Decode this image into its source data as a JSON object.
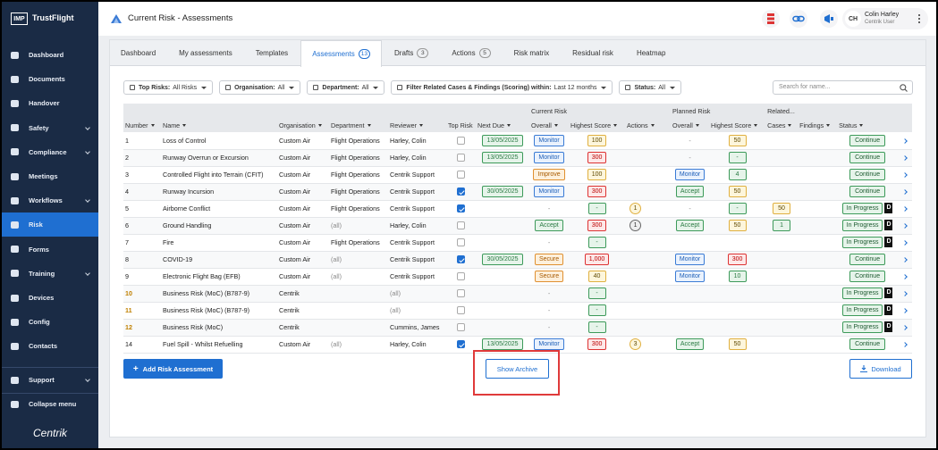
{
  "sidebar": {
    "logo": "IMP",
    "brand": "TrustFlight",
    "items": [
      {
        "label": "Dashboard"
      },
      {
        "label": "Documents"
      },
      {
        "label": "Handover"
      },
      {
        "label": "Safety",
        "expandable": true
      },
      {
        "label": "Compliance",
        "expandable": true
      },
      {
        "label": "Meetings"
      },
      {
        "label": "Workflows",
        "expandable": true
      },
      {
        "label": "Risk",
        "active": true
      },
      {
        "label": "Forms"
      },
      {
        "label": "Training",
        "expandable": true
      },
      {
        "label": "Devices"
      },
      {
        "label": "Config"
      },
      {
        "label": "Contacts"
      }
    ],
    "bottom": [
      {
        "label": "Support",
        "expandable": true
      },
      {
        "label": "Collapse menu"
      }
    ],
    "footer": "Centrik"
  },
  "header": {
    "title": "Current Risk",
    "separator": "-",
    "subtitle": "Assessments",
    "user": {
      "initials": "CH",
      "name": "Colin Harley",
      "role": "Centrik User"
    }
  },
  "tabs": [
    {
      "label": "Dashboard"
    },
    {
      "label": "My assessments"
    },
    {
      "label": "Templates"
    },
    {
      "label": "Assessments",
      "count": 13,
      "active": true
    },
    {
      "label": "Drafts",
      "count": 3
    },
    {
      "label": "Actions",
      "count": 5
    },
    {
      "label": "Risk matrix"
    },
    {
      "label": "Residual risk"
    },
    {
      "label": "Heatmap"
    }
  ],
  "filters": [
    {
      "label": "Top Risks:",
      "value": "All Risks"
    },
    {
      "label": "Organisation:",
      "value": "All"
    },
    {
      "label": "Department:",
      "value": "All"
    },
    {
      "label": "Filter Related Cases & Findings (Scoring) within:",
      "value": "Last 12 months"
    },
    {
      "label": "Status:",
      "value": "All"
    }
  ],
  "search_placeholder": "Search for name...",
  "table": {
    "groups": [
      "Current Risk",
      "Planned Risk",
      "Related..."
    ],
    "columns": [
      "Number",
      "Name",
      "Organisation",
      "Department",
      "Reviewer",
      "Top Risk",
      "Next Due",
      "Overall",
      "Highest Score",
      "Actions",
      "Overall",
      "Highest Score",
      "Cases",
      "Findings",
      "Status"
    ],
    "rows": [
      [
        "1",
        "Loss of Control",
        "Custom Air",
        "Flight Operations",
        "Harley, Colin",
        false,
        {
          "text": "13/05/2025",
          "tone": "green"
        },
        {
          "text": "Monitor",
          "tone": "blue"
        },
        {
          "text": "100",
          "tone": "yellow"
        },
        null,
        "-",
        {
          "text": "50",
          "tone": "yellow"
        },
        null,
        null,
        {
          "text": "Continue"
        }
      ],
      [
        "2",
        "Runway Overrun or Excursion",
        "Custom Air",
        "Flight Operations",
        "Harley, Colin",
        false,
        {
          "text": "13/05/2025",
          "tone": "green"
        },
        {
          "text": "Monitor",
          "tone": "blue"
        },
        {
          "text": "300",
          "tone": "red"
        },
        null,
        "-",
        {
          "text": "-",
          "tone": "green"
        },
        null,
        null,
        {
          "text": "Continue"
        }
      ],
      [
        "3",
        "Controlled Flight into Terrain (CFIT)",
        "Custom Air",
        "Flight Operations",
        "Centrik Support",
        false,
        null,
        {
          "text": "Improve",
          "tone": "orange"
        },
        {
          "text": "100",
          "tone": "yellow"
        },
        null,
        {
          "text": "Monitor",
          "tone": "blue"
        },
        {
          "text": "4",
          "tone": "green"
        },
        null,
        null,
        {
          "text": "Continue"
        }
      ],
      [
        "4",
        "Runway Incursion",
        "Custom Air",
        "Flight Operations",
        "Centrik Support",
        true,
        {
          "text": "30/05/2025",
          "tone": "green"
        },
        {
          "text": "Monitor",
          "tone": "blue"
        },
        {
          "text": "300",
          "tone": "red"
        },
        null,
        {
          "text": "Accept",
          "tone": "green"
        },
        {
          "text": "50",
          "tone": "yellow"
        },
        null,
        null,
        {
          "text": "Continue"
        }
      ],
      [
        "5",
        "Airborne Conflict",
        "Custom Air",
        "Flight Operations",
        "Centrik Support",
        true,
        null,
        "-",
        {
          "text": "-",
          "tone": "green"
        },
        {
          "text": "1",
          "tone": "yellow"
        },
        "-",
        {
          "text": "-",
          "tone": "green"
        },
        {
          "text": "50",
          "tone": "yellow"
        },
        null,
        {
          "text": "In Progress",
          "tag": "D"
        }
      ],
      [
        "6",
        "Ground Handling",
        "Custom Air",
        {
          "text": "(all)",
          "tone": "gray"
        },
        "Harley, Colin",
        false,
        null,
        {
          "text": "Accept",
          "tone": "green"
        },
        {
          "text": "300",
          "tone": "red"
        },
        {
          "text": "1",
          "tone": "gray"
        },
        {
          "text": "Accept",
          "tone": "green"
        },
        {
          "text": "50",
          "tone": "yellow"
        },
        {
          "text": "1",
          "tone": "green"
        },
        null,
        {
          "text": "In Progress",
          "tag": "D"
        }
      ],
      [
        "7",
        "Fire",
        "Custom Air",
        "Flight Operations",
        "Centrik Support",
        false,
        null,
        "-",
        {
          "text": "-",
          "tone": "green"
        },
        null,
        null,
        null,
        null,
        null,
        {
          "text": "In Progress",
          "tag": "D"
        }
      ],
      [
        "8",
        "COVID-19",
        "Custom Air",
        {
          "text": "(all)",
          "tone": "gray"
        },
        "Centrik Support",
        true,
        {
          "text": "30/05/2025",
          "tone": "green"
        },
        {
          "text": "Secure",
          "tone": "orange"
        },
        {
          "text": "1,000",
          "tone": "red"
        },
        null,
        {
          "text": "Monitor",
          "tone": "blue"
        },
        {
          "text": "300",
          "tone": "red"
        },
        null,
        null,
        {
          "text": "Continue"
        }
      ],
      [
        "9",
        "Electronic Flight Bag (EFB)",
        "Custom Air",
        {
          "text": "(all)",
          "tone": "gray"
        },
        "Centrik Support",
        false,
        null,
        {
          "text": "Secure",
          "tone": "orange"
        },
        {
          "text": "40",
          "tone": "yellow"
        },
        null,
        {
          "text": "Monitor",
          "tone": "blue"
        },
        {
          "text": "10",
          "tone": "green"
        },
        null,
        null,
        {
          "text": "Continue"
        }
      ],
      [
        {
          "text": "10",
          "tone": "orange"
        },
        "Business Risk (MoC) (B787-9)",
        "Centrik",
        null,
        {
          "text": "(all)",
          "tone": "gray"
        },
        false,
        null,
        "-",
        {
          "text": "-",
          "tone": "green"
        },
        null,
        null,
        null,
        null,
        null,
        {
          "text": "In Progress",
          "tag": "D"
        }
      ],
      [
        {
          "text": "11",
          "tone": "orange"
        },
        "Business Risk (MoC) (B787-9)",
        "Centrik",
        null,
        {
          "text": "(all)",
          "tone": "gray"
        },
        false,
        null,
        "-",
        {
          "text": "-",
          "tone": "green"
        },
        null,
        null,
        null,
        null,
        null,
        {
          "text": "In Progress",
          "tag": "D"
        }
      ],
      [
        {
          "text": "12",
          "tone": "orange"
        },
        "Business Risk (MoC)",
        "Centrik",
        null,
        "Cummins, James",
        false,
        null,
        "-",
        {
          "text": "-",
          "tone": "green"
        },
        null,
        null,
        null,
        null,
        null,
        {
          "text": "In Progress",
          "tag": "D"
        }
      ],
      [
        "14",
        "Fuel Spill - Whilst Refuelling",
        "Custom Air",
        {
          "text": "(all)",
          "tone": "gray"
        },
        "Harley, Colin",
        true,
        {
          "text": "13/05/2025",
          "tone": "green"
        },
        {
          "text": "Monitor",
          "tone": "blue"
        },
        {
          "text": "300",
          "tone": "red"
        },
        {
          "text": "3",
          "tone": "yellow"
        },
        {
          "text": "Accept",
          "tone": "green"
        },
        {
          "text": "50",
          "tone": "yellow"
        },
        null,
        null,
        {
          "text": "Continue"
        }
      ]
    ]
  },
  "buttons": {
    "add": "Add Risk Assessment",
    "archive": "Show Archive",
    "download": "Download"
  }
}
